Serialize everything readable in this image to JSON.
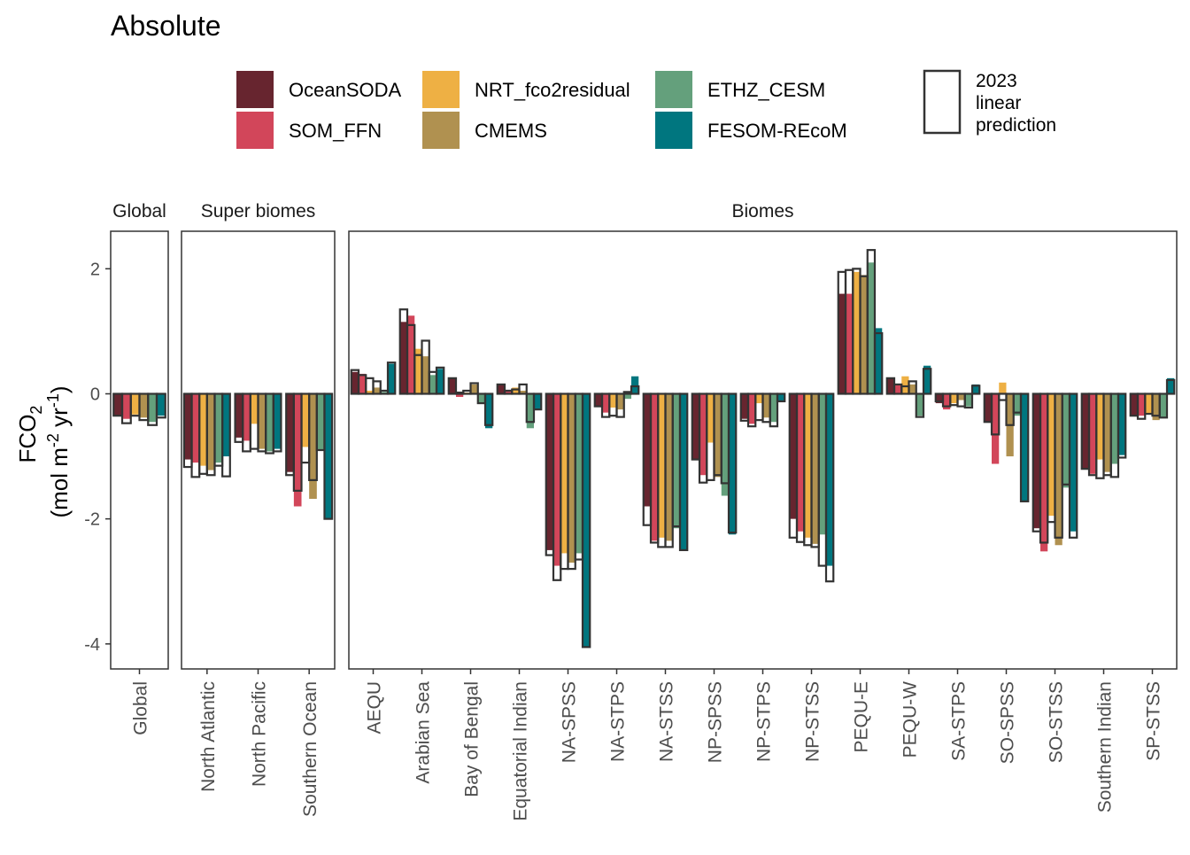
{
  "chart_data": {
    "type": "bar",
    "title": "Absolute",
    "ylabel": {
      "main": "FCO",
      "sub": "2",
      "line2_a": "(mol m",
      "sup1": "-2",
      "line2_b": " yr",
      "sup2": "-1",
      "line2_c": ")"
    },
    "ylim": [
      -4.4,
      2.6
    ],
    "yticks": [
      2,
      0,
      -2,
      -4
    ],
    "ytick_labels": [
      "2",
      "0",
      "-2",
      "-4"
    ],
    "series": [
      {
        "name": "OceanSODA",
        "color": "#67252f"
      },
      {
        "name": "SOM_FFN",
        "color": "#d2465a"
      },
      {
        "name": "NRT_fco2residual",
        "color": "#eeb044"
      },
      {
        "name": "CMEMS",
        "color": "#b09150"
      },
      {
        "name": "ETHZ_CESM",
        "color": "#64a07c"
      },
      {
        "name": "FESOM-REcoM",
        "color": "#00767f"
      }
    ],
    "outline_legend": "2023 linear prediction",
    "outline_legend_lines": [
      "2023",
      "linear",
      "prediction"
    ],
    "facets": [
      {
        "label": "Global",
        "categories": [
          {
            "name": "Global",
            "values": [
              -0.35,
              -0.4,
              -0.33,
              -0.38,
              -0.45,
              -0.35
            ],
            "pred": [
              -0.35,
              -0.47,
              -0.35,
              -0.42,
              -0.5,
              -0.38
            ]
          }
        ]
      },
      {
        "label": "Super biomes",
        "categories": [
          {
            "name": "North Atlantic",
            "values": [
              -1.05,
              -1.1,
              -1.15,
              -1.22,
              -1.1,
              -1.0
            ],
            "pred": [
              -1.17,
              -1.33,
              -1.28,
              -1.3,
              -1.15,
              -1.32
            ]
          },
          {
            "name": "North Pacific",
            "values": [
              -0.7,
              -0.75,
              -0.48,
              -0.88,
              -0.92,
              -0.88
            ],
            "pred": [
              -0.77,
              -0.92,
              -0.88,
              -0.92,
              -0.95,
              -0.92
            ]
          },
          {
            "name": "Southern Ocean",
            "values": [
              -1.25,
              -1.8,
              -0.85,
              -1.68,
              -0.9,
              -2.0
            ],
            "pred": [
              -1.3,
              -1.55,
              -1.1,
              -1.38,
              -0.9,
              -2.0
            ]
          }
        ]
      },
      {
        "label": "Biomes",
        "categories": [
          {
            "name": "AEQU",
            "values": [
              0.35,
              0.32,
              0.05,
              0.1,
              0.03,
              0.48
            ],
            "pred": [
              0.38,
              0.3,
              0.25,
              0.2,
              0.05,
              0.5
            ]
          },
          {
            "name": "Arabian Sea",
            "values": [
              1.15,
              1.25,
              0.72,
              0.6,
              0.3,
              0.4
            ],
            "pred": [
              1.35,
              1.1,
              0.62,
              0.85,
              0.35,
              0.42
            ]
          },
          {
            "name": "Bay of Bengal",
            "values": [
              0.25,
              -0.05,
              0.02,
              0.15,
              -0.15,
              -0.55
            ],
            "pred": [
              0.25,
              0.02,
              0.05,
              0.17,
              -0.15,
              -0.5
            ]
          },
          {
            "name": "Equatorial Indian",
            "values": [
              0.15,
              0.05,
              0.1,
              0.05,
              -0.55,
              -0.25
            ],
            "pred": [
              0.15,
              0.05,
              0.07,
              0.15,
              -0.45,
              -0.25
            ]
          },
          {
            "name": "NA-SPSS",
            "values": [
              -2.5,
              -2.75,
              -2.55,
              -2.7,
              -2.55,
              -4.05
            ],
            "pred": [
              -2.58,
              -2.98,
              -2.8,
              -2.8,
              -2.65,
              -4.05
            ]
          },
          {
            "name": "NA-STPS",
            "values": [
              -0.2,
              -0.3,
              -0.22,
              -0.25,
              -0.08,
              0.28
            ],
            "pred": [
              -0.2,
              -0.37,
              -0.35,
              -0.37,
              0.03,
              0.12
            ]
          },
          {
            "name": "NA-STSS",
            "values": [
              -1.8,
              -2.35,
              -2.3,
              -2.35,
              -2.15,
              -2.5
            ],
            "pred": [
              -2.1,
              -2.38,
              -2.45,
              -2.45,
              -2.12,
              -2.5
            ]
          },
          {
            "name": "NP-SPSS",
            "values": [
              -1.05,
              -1.3,
              -0.78,
              -1.33,
              -1.63,
              -2.25
            ],
            "pred": [
              -1.05,
              -1.42,
              -1.38,
              -1.3,
              -1.43,
              -2.22
            ]
          },
          {
            "name": "NP-STPS",
            "values": [
              -0.4,
              -0.48,
              -0.15,
              -0.38,
              -0.45,
              -0.12
            ],
            "pred": [
              -0.43,
              -0.52,
              -0.42,
              -0.45,
              -0.52,
              -0.12
            ]
          },
          {
            "name": "NP-STSS",
            "values": [
              -2.0,
              -2.2,
              -2.3,
              -2.4,
              -2.25,
              -2.75
            ],
            "pred": [
              -2.3,
              -2.37,
              -2.42,
              -2.45,
              -2.75,
              -3.0
            ]
          },
          {
            "name": "PEQU-E",
            "values": [
              1.6,
              1.6,
              1.95,
              1.9,
              2.1,
              1.05
            ],
            "pred": [
              1.95,
              1.98,
              2.0,
              1.88,
              2.3,
              0.97
            ]
          },
          {
            "name": "PEQU-W",
            "values": [
              0.25,
              0.15,
              0.28,
              0.15,
              -0.35,
              0.45
            ],
            "pred": [
              0.25,
              0.15,
              0.12,
              0.2,
              -0.37,
              0.4
            ]
          },
          {
            "name": "SA-STPS",
            "values": [
              -0.15,
              -0.25,
              -0.15,
              -0.1,
              -0.2,
              0.15
            ],
            "pred": [
              -0.12,
              -0.2,
              -0.18,
              -0.2,
              -0.22,
              0.13
            ]
          },
          {
            "name": "SO-SPSS",
            "values": [
              -0.45,
              -1.12,
              0.18,
              -1.0,
              -0.35,
              -1.72
            ],
            "pred": [
              -0.45,
              -0.65,
              -0.1,
              -0.5,
              -0.3,
              -1.72
            ]
          },
          {
            "name": "SO-STSS",
            "values": [
              -2.15,
              -2.52,
              -1.95,
              -2.42,
              -1.5,
              -2.2
            ],
            "pred": [
              -2.2,
              -2.38,
              -2.05,
              -2.3,
              -1.45,
              -2.3
            ]
          },
          {
            "name": "Southern Indian",
            "values": [
              -1.2,
              -1.28,
              -1.05,
              -1.25,
              -1.12,
              -0.98
            ],
            "pred": [
              -1.2,
              -1.3,
              -1.35,
              -1.3,
              -1.33,
              -1.02
            ]
          },
          {
            "name": "SP-STSS",
            "values": [
              -0.35,
              -0.35,
              -0.32,
              -0.42,
              -0.38,
              0.25
            ],
            "pred": [
              -0.35,
              -0.4,
              -0.32,
              -0.35,
              -0.38,
              0.22
            ]
          }
        ]
      }
    ]
  }
}
